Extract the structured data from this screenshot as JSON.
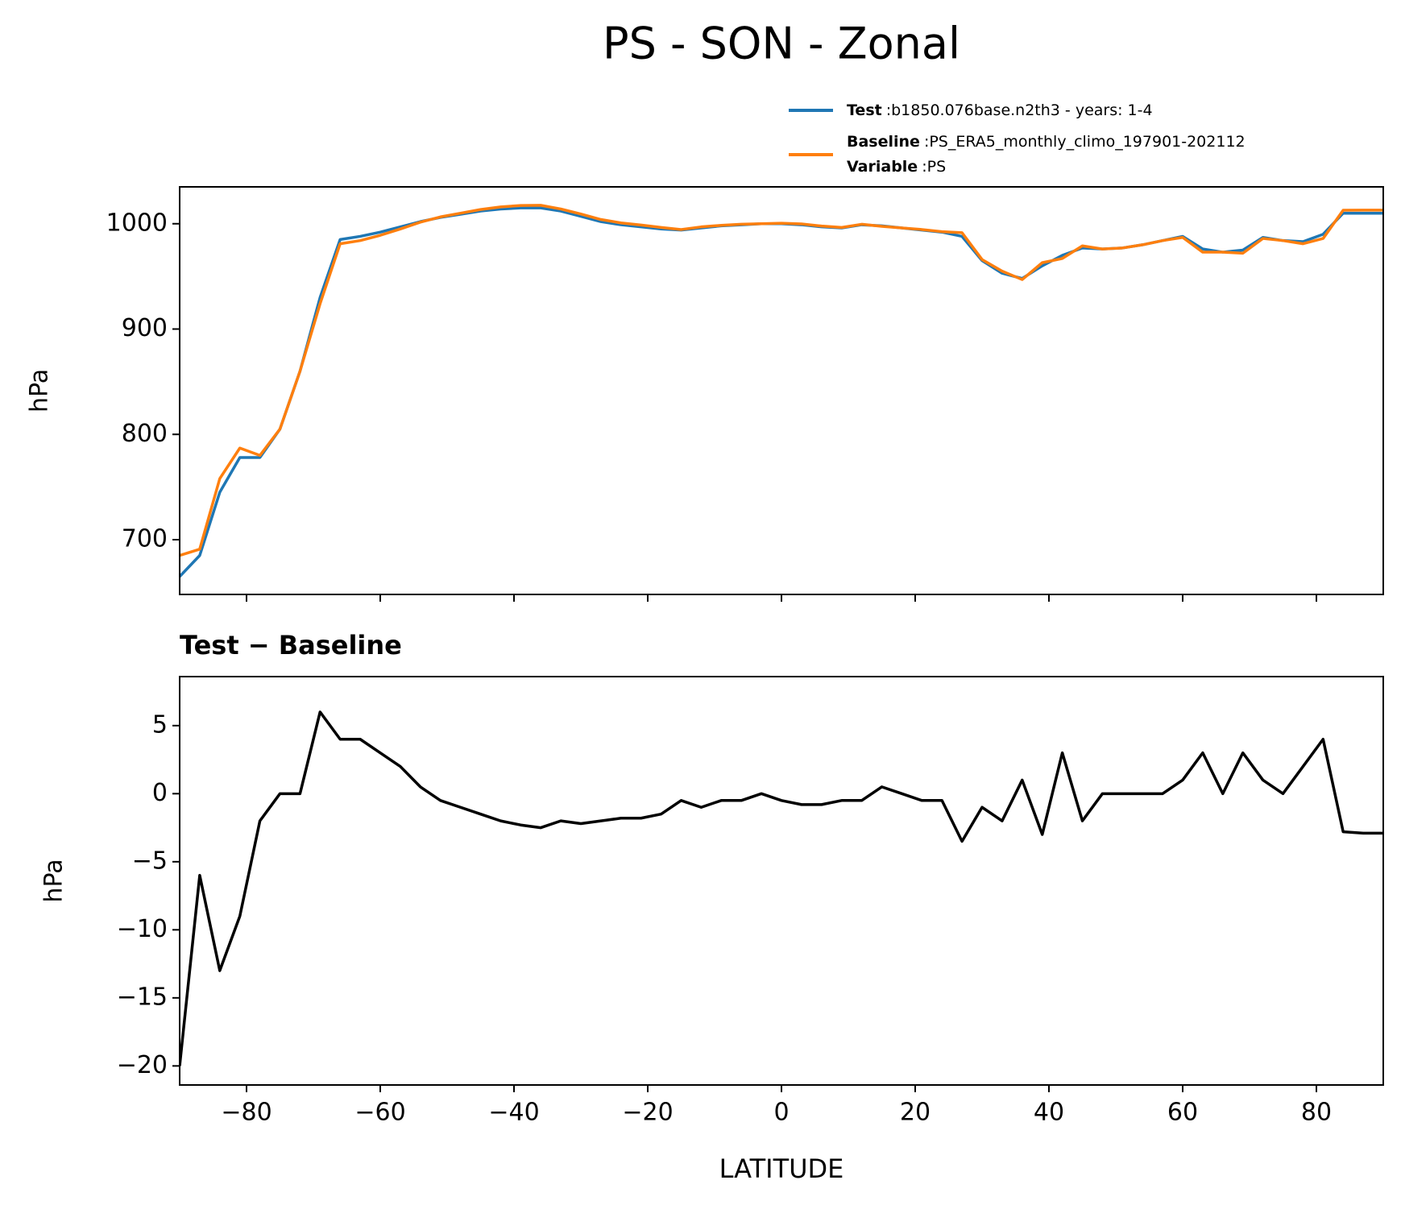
{
  "title": "PS - SON - Zonal",
  "chart_data": [
    {
      "type": "line",
      "ylabel": "hPa",
      "separator": ":",
      "legend_note": {
        "name": "Variable",
        "label": "PS"
      },
      "x": [
        -90,
        -87,
        -84,
        -81,
        -78,
        -75,
        -72,
        -69,
        -66,
        -63,
        -60,
        -57,
        -54,
        -51,
        -48,
        -45,
        -42,
        -39,
        -36,
        -33,
        -30,
        -27,
        -24,
        -21,
        -18,
        -15,
        -12,
        -9,
        -6,
        -3,
        0,
        3,
        6,
        9,
        12,
        15,
        18,
        21,
        24,
        27,
        30,
        33,
        36,
        39,
        42,
        45,
        48,
        51,
        54,
        57,
        60,
        63,
        66,
        69,
        72,
        75,
        78,
        81,
        84,
        87,
        90
      ],
      "series": [
        {
          "name": "Test",
          "label": "b1850.076base.n2th3 - years: 1-4",
          "color": "#1f77b4",
          "values": [
            665,
            685,
            745,
            778,
            778,
            805,
            860,
            930,
            985,
            988,
            992,
            997,
            1002,
            1006,
            1009,
            1012,
            1014,
            1015,
            1015,
            1012,
            1007,
            1002,
            999,
            997,
            995,
            994,
            996,
            998,
            999,
            1000,
            1000,
            999,
            997,
            996,
            999,
            998,
            996,
            994,
            992,
            988,
            965,
            953,
            948,
            960,
            970,
            977,
            976,
            977,
            980,
            984,
            988,
            976,
            973,
            975,
            987,
            984,
            983,
            990,
            1010,
            1010,
            1010
          ]
        },
        {
          "name": "Baseline",
          "label": "PS_ERA5_monthly_climo_197901-202112",
          "color": "#ff7f0e",
          "values": [
            685,
            691,
            758,
            787,
            780,
            805,
            860,
            924,
            981,
            984,
            989,
            995,
            1001.5,
            1006.5,
            1010,
            1013.5,
            1016,
            1017.3,
            1017.5,
            1014,
            1009.2,
            1004,
            1000.8,
            998.8,
            996.5,
            994.5,
            997,
            998.5,
            999.5,
            1000,
            1000.5,
            999.8,
            997.8,
            996.5,
            999.5,
            997.5,
            996,
            994.5,
            992.5,
            991.5,
            966,
            955,
            947,
            963,
            967,
            979,
            976,
            977,
            980,
            984,
            987,
            973,
            973,
            972,
            986,
            984,
            981,
            986,
            1012.8,
            1012.9,
            1012.9
          ]
        }
      ],
      "xlim": [
        -90,
        90
      ],
      "xticks": [
        -80,
        -60,
        -40,
        -20,
        0,
        20,
        40,
        60,
        80
      ],
      "ylim": [
        648,
        1035
      ],
      "yticks": [
        700,
        800,
        900,
        1000
      ]
    },
    {
      "type": "line",
      "title": "Test − Baseline",
      "xlabel": "LATITUDE",
      "ylabel": "hPa",
      "x": [
        -90,
        -87,
        -84,
        -81,
        -78,
        -75,
        -72,
        -69,
        -66,
        -63,
        -60,
        -57,
        -54,
        -51,
        -48,
        -45,
        -42,
        -39,
        -36,
        -33,
        -30,
        -27,
        -24,
        -21,
        -18,
        -15,
        -12,
        -9,
        -6,
        -3,
        0,
        3,
        6,
        9,
        12,
        15,
        18,
        21,
        24,
        27,
        30,
        33,
        36,
        39,
        42,
        45,
        48,
        51,
        54,
        57,
        60,
        63,
        66,
        69,
        72,
        75,
        78,
        81,
        84,
        87,
        90
      ],
      "series": [
        {
          "color": "#000000",
          "values": [
            -20,
            -6,
            -13,
            -9,
            -2,
            0,
            0,
            6,
            4,
            4,
            3,
            2,
            0.5,
            -0.5,
            -1,
            -1.5,
            -2,
            -2.3,
            -2.5,
            -2,
            -2.2,
            -2,
            -1.8,
            -1.8,
            -1.5,
            -0.5,
            -1,
            -0.5,
            -0.5,
            0,
            -0.5,
            -0.8,
            -0.8,
            -0.5,
            -0.5,
            0.5,
            0,
            -0.5,
            -0.5,
            -3.5,
            -1,
            -2,
            1,
            -3,
            3,
            -2,
            0,
            0,
            0,
            0,
            1,
            3,
            0,
            3,
            1,
            0,
            2,
            4,
            -2.8,
            -2.9,
            -2.9
          ]
        }
      ],
      "xlim": [
        -90,
        90
      ],
      "xticks": [
        {
          "value": -80,
          "label": "−80"
        },
        {
          "value": -60,
          "label": "−60"
        },
        {
          "value": -40,
          "label": "−40"
        },
        {
          "value": -20,
          "label": "−20"
        },
        0,
        20,
        40,
        60,
        80
      ],
      "ylim": [
        -21.4,
        8.6
      ],
      "yticks": [
        {
          "value": -20,
          "label": "−20"
        },
        {
          "value": -15,
          "label": "−15"
        },
        {
          "value": -10,
          "label": "−10"
        },
        {
          "value": -5,
          "label": "−5"
        },
        0,
        5
      ]
    }
  ]
}
